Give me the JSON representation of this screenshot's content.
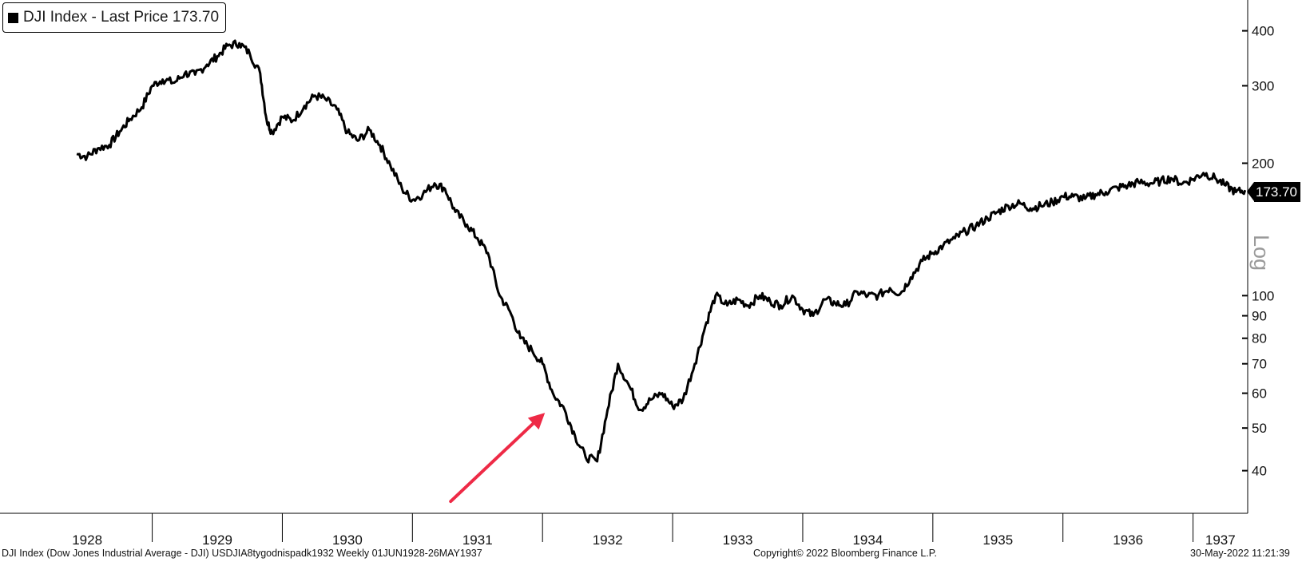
{
  "legend": {
    "label": "DJI Index - Last Price 173.70"
  },
  "axis_scale_label": "Log",
  "last_price_tag": "173.70",
  "footer": {
    "left": "DJI Index (Dow Jones Industrial Average - DJI) USDJIA8tygodnispadk1932  Weekly 01JUN1928-26MAY1937",
    "center": "Copyright© 2022 Bloomberg Finance L.P.",
    "right": "30-May-2022 11:21:39"
  },
  "colors": {
    "line": "#000000",
    "arrow": "#ee2a46",
    "background": "#ffffff"
  },
  "annotations": [
    {
      "type": "arrow",
      "icon": "red-arrow-icon",
      "points_to": {
        "x": 1932.08,
        "y": 56
      }
    }
  ],
  "chart_data": {
    "type": "line",
    "title": "",
    "xlabel": "",
    "ylabel": "",
    "y_scale": "log",
    "y_range": [
      32,
      470
    ],
    "x_range": [
      1927.83,
      1937.42
    ],
    "y_ticks": [
      40,
      50,
      60,
      70,
      80,
      90,
      100,
      200,
      300,
      400
    ],
    "x_ticks": [
      "1928",
      "1929",
      "1930",
      "1931",
      "1932",
      "1933",
      "1934",
      "1935",
      "1936",
      "1937"
    ],
    "grid": false,
    "legend_position": "top-left",
    "series": [
      {
        "x": [
          1928.42,
          1928.5,
          1928.58,
          1928.67,
          1928.75,
          1928.83,
          1928.92,
          1929.0,
          1929.08,
          1929.17,
          1929.25,
          1929.33,
          1929.42,
          1929.5,
          1929.58,
          1929.67,
          1929.75,
          1929.83,
          1929.88,
          1929.92,
          1930.0,
          1930.08,
          1930.17,
          1930.25,
          1930.33,
          1930.42,
          1930.5,
          1930.58,
          1930.67,
          1930.75,
          1930.83,
          1930.92,
          1931.0,
          1931.08,
          1931.17,
          1931.25,
          1931.33,
          1931.42,
          1931.5,
          1931.58,
          1931.67,
          1931.75,
          1931.83,
          1931.92,
          1932.0,
          1932.08,
          1932.17,
          1932.25,
          1932.33,
          1932.42,
          1932.5,
          1932.58,
          1932.67,
          1932.75,
          1932.83,
          1932.92,
          1933.0,
          1933.08,
          1933.17,
          1933.25,
          1933.33,
          1933.42,
          1933.5,
          1933.58,
          1933.67,
          1933.75,
          1933.83,
          1933.92,
          1934.0,
          1934.08,
          1934.17,
          1934.25,
          1934.33,
          1934.42,
          1934.5,
          1934.58,
          1934.67,
          1934.75,
          1934.83,
          1934.92,
          1935.0,
          1935.08,
          1935.17,
          1935.25,
          1935.33,
          1935.42,
          1935.5,
          1935.58,
          1935.67,
          1935.75,
          1935.83,
          1935.92,
          1936.0,
          1936.08,
          1936.17,
          1936.25,
          1936.33,
          1936.42,
          1936.5,
          1936.58,
          1936.67,
          1936.75,
          1936.83,
          1936.92,
          1937.0,
          1937.08,
          1937.17,
          1937.25,
          1937.33,
          1937.4
        ],
        "y": [
          210,
          207,
          216,
          220,
          236,
          252,
          268,
          300,
          310,
          305,
          320,
          318,
          335,
          350,
          370,
          375,
          355,
          320,
          250,
          235,
          255,
          250,
          270,
          285,
          280,
          265,
          235,
          225,
          238,
          220,
          198,
          175,
          165,
          170,
          180,
          175,
          155,
          145,
          135,
          125,
          100,
          92,
          80,
          75,
          70,
          60,
          55,
          48,
          43,
          42,
          55,
          70,
          62,
          55,
          58,
          60,
          56,
          58,
          70,
          85,
          100,
          95,
          98,
          95,
          100,
          97,
          95,
          100,
          93,
          90,
          98,
          96,
          95,
          102,
          100,
          100,
          104,
          101,
          110,
          120,
          125,
          130,
          135,
          140,
          144,
          150,
          155,
          160,
          162,
          158,
          160,
          163,
          168,
          168,
          166,
          170,
          172,
          176,
          178,
          181,
          180,
          182,
          185,
          180,
          184,
          190,
          185,
          178,
          172,
          173.7
        ]
      }
    ]
  }
}
